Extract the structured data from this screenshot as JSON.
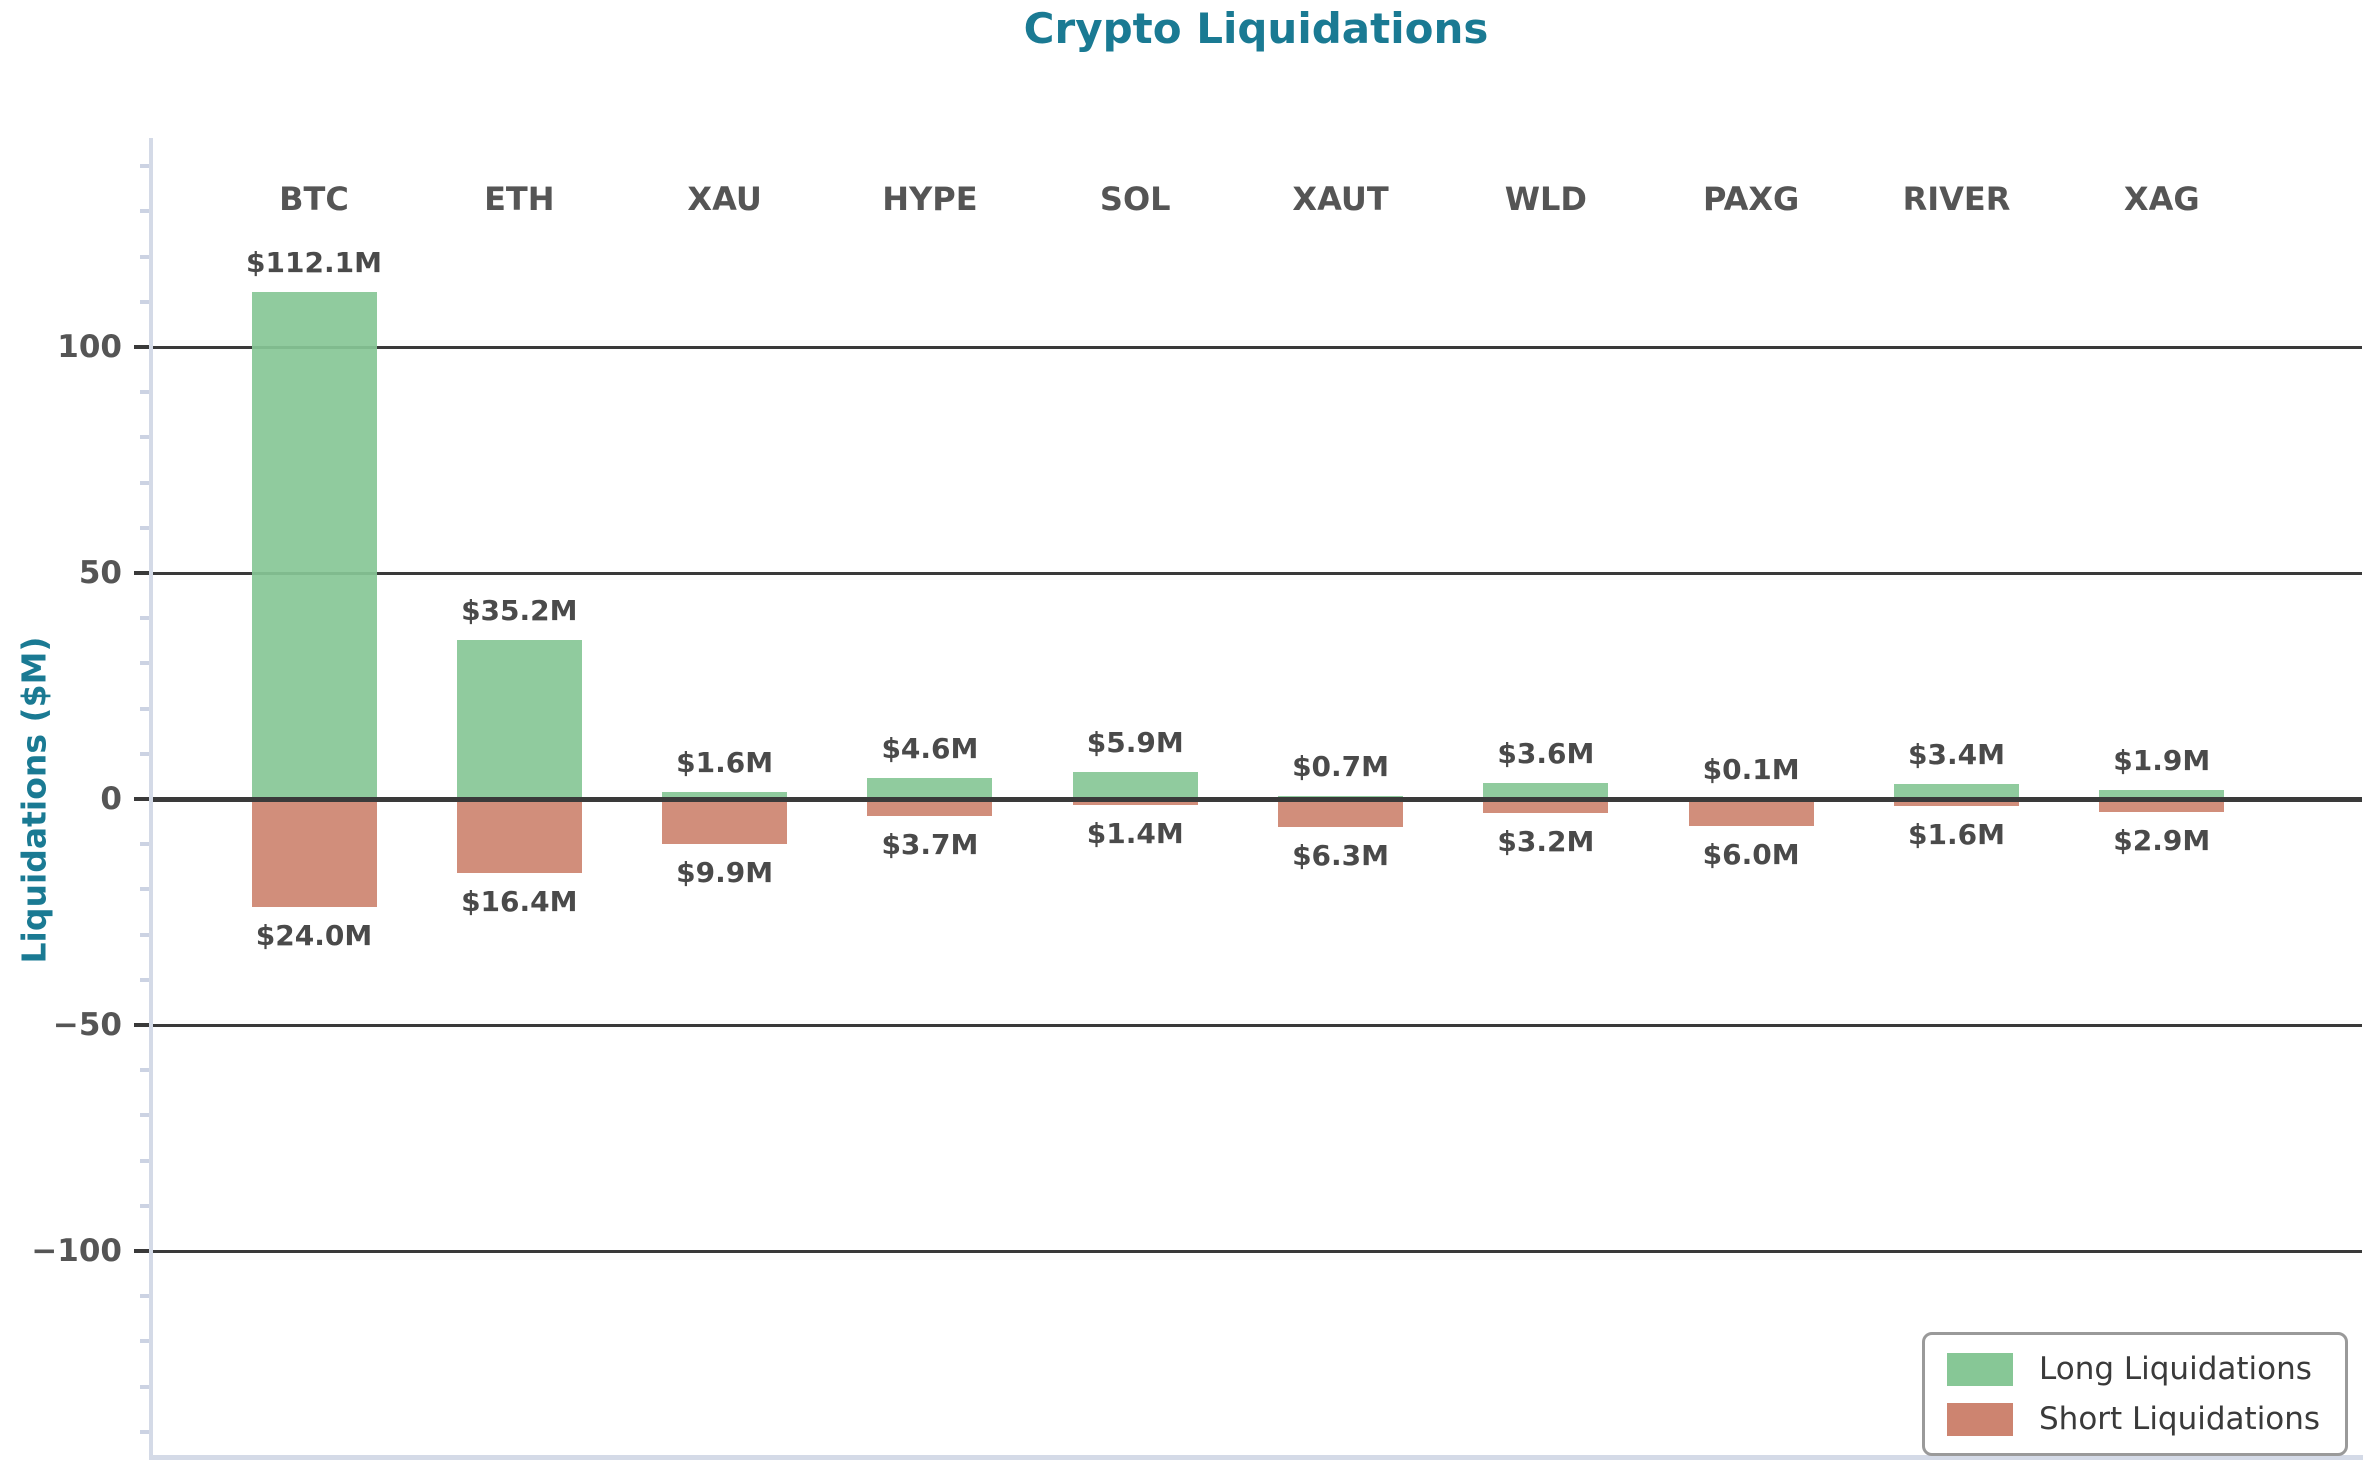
{
  "title": "Crypto Liquidations",
  "ylabel": "Liquidations ($M)",
  "colors": {
    "long": "#87c796",
    "short": "#cd8470",
    "title": "#1a7a93",
    "grid": "#3a3a3a",
    "spine": "#d4dae7",
    "minor_tick": "#ccd3e3",
    "tick_label": "#555555",
    "value_label": "#4a4a4a",
    "legend_text": "#3a3a3a"
  },
  "legend": {
    "items": [
      {
        "label": "Long Liquidations",
        "color_key": "long"
      },
      {
        "label": "Short Liquidations",
        "color_key": "short"
      }
    ]
  },
  "chart_data": {
    "type": "bar",
    "title": "Crypto Liquidations",
    "ylabel": "Liquidations ($M)",
    "xlabel": "",
    "categories": [
      "BTC",
      "ETH",
      "XAU",
      "HYPE",
      "SOL",
      "XAUT",
      "WLD",
      "PAXG",
      "RIVER",
      "XAG"
    ],
    "series": [
      {
        "name": "Long Liquidations",
        "direction": "up",
        "values": [
          112.1,
          35.2,
          1.6,
          4.6,
          5.9,
          0.7,
          3.6,
          0.1,
          3.4,
          1.9
        ],
        "labels": [
          "$112.1M",
          "$35.2M",
          "$1.6M",
          "$4.6M",
          "$5.9M",
          "$0.7M",
          "$3.6M",
          "$0.1M",
          "$3.4M",
          "$1.9M"
        ]
      },
      {
        "name": "Short Liquidations",
        "direction": "down",
        "values": [
          24.0,
          16.4,
          9.9,
          3.7,
          1.4,
          6.3,
          3.2,
          6.0,
          1.6,
          2.9
        ],
        "labels": [
          "$24.0M",
          "$16.4M",
          "$9.9M",
          "$3.7M",
          "$1.4M",
          "$6.3M",
          "$3.2M",
          "$6.0M",
          "$1.6M",
          "$2.9M"
        ]
      }
    ],
    "yticks": [
      100,
      50,
      0,
      -50,
      -100
    ],
    "ytick_labels": [
      "100",
      "50",
      "0",
      "−50",
      "−100"
    ],
    "minor_tick_step": 10,
    "ylim": [
      -146,
      146
    ],
    "grid": true,
    "legend_position": "lower right"
  }
}
